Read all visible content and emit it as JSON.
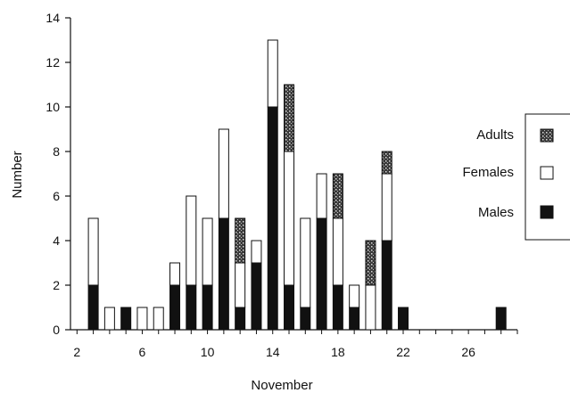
{
  "chart_data": {
    "type": "bar",
    "stacked": true,
    "xlabel": "November",
    "ylabel": "Number",
    "xlim": [
      1.6,
      29
    ],
    "ylim": [
      0,
      14
    ],
    "x_ticks": [
      2,
      6,
      10,
      14,
      18,
      22,
      26
    ],
    "y_ticks": [
      0,
      2,
      4,
      6,
      8,
      10,
      12,
      14
    ],
    "grid": false,
    "legend": "right",
    "x": [
      3,
      4,
      5,
      6,
      7,
      8,
      9,
      10,
      11,
      12,
      13,
      14,
      15,
      16,
      17,
      18,
      19,
      20,
      21,
      22,
      28
    ],
    "series": [
      {
        "name": "Males",
        "color": "#111111",
        "values": [
          2,
          0,
          1,
          0,
          0,
          2,
          2,
          2,
          5,
          1,
          3,
          10,
          2,
          1,
          5,
          2,
          1,
          0,
          4,
          1,
          1
        ]
      },
      {
        "name": "Females",
        "color": "#ffffff",
        "values": [
          3,
          1,
          0,
          1,
          1,
          1,
          4,
          3,
          4,
          2,
          1,
          3,
          6,
          4,
          2,
          3,
          1,
          2,
          3,
          0,
          0
        ]
      },
      {
        "name": "Adults",
        "color": "#444444",
        "values": [
          0,
          0,
          0,
          0,
          0,
          0,
          0,
          0,
          0,
          2,
          0,
          0,
          3,
          0,
          0,
          2,
          0,
          2,
          1,
          0,
          0
        ]
      }
    ]
  }
}
